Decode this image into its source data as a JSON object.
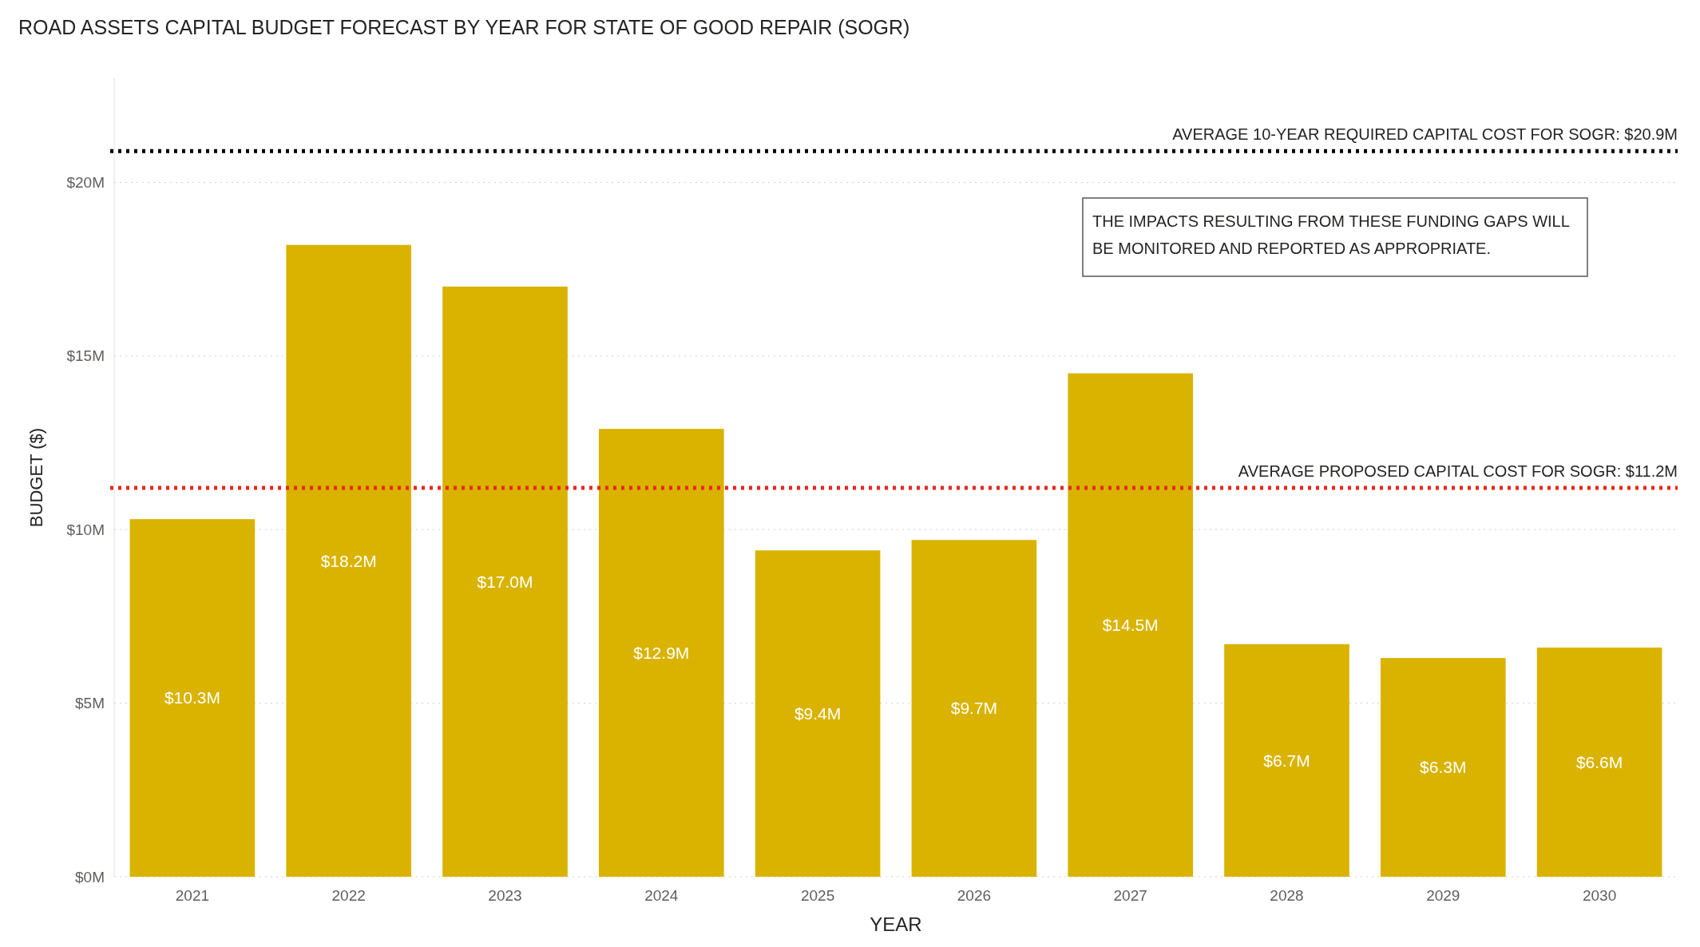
{
  "chart_data": {
    "type": "bar",
    "title": "ROAD ASSETS CAPITAL BUDGET FORECAST BY YEAR FOR STATE OF GOOD REPAIR (SOGR)",
    "xlabel": "YEAR",
    "ylabel": "BUDGET ($)",
    "categories": [
      "2021",
      "2022",
      "2023",
      "2024",
      "2025",
      "2026",
      "2027",
      "2028",
      "2029",
      "2030"
    ],
    "values": [
      10.3,
      18.2,
      17.0,
      12.9,
      9.4,
      9.7,
      14.5,
      6.7,
      6.3,
      6.6
    ],
    "value_labels": [
      "$10.3M",
      "$18.2M",
      "$17.0M",
      "$12.9M",
      "$9.4M",
      "$9.7M",
      "$14.5M",
      "$6.7M",
      "$6.3M",
      "$6.6M"
    ],
    "color": "#d9b300",
    "ylim": [
      0,
      23
    ],
    "yticks": [
      {
        "value": 0,
        "label": "$0M"
      },
      {
        "value": 5,
        "label": "$5M"
      },
      {
        "value": 10,
        "label": "$10M"
      },
      {
        "value": 15,
        "label": "$15M"
      },
      {
        "value": 20,
        "label": "$20M"
      }
    ],
    "grid": "y",
    "ref_lines": [
      {
        "axis": "y",
        "value": 20.9,
        "label": "AVERAGE 10-YEAR REQUIRED CAPITAL COST FOR SOGR: $20.9M",
        "color": "#000000",
        "line_style": "dotted"
      },
      {
        "axis": "y",
        "value": 11.2,
        "label": "AVERAGE PROPOSED CAPITAL COST FOR SOGR: $11.2M",
        "color": "#e8281e",
        "line_style": "dotted"
      }
    ],
    "annotations": [
      "THE IMPACTS RESULTING FROM THESE FUNDING GAPS WILL BE MONITORED AND REPORTED AS APPROPRIATE."
    ]
  }
}
